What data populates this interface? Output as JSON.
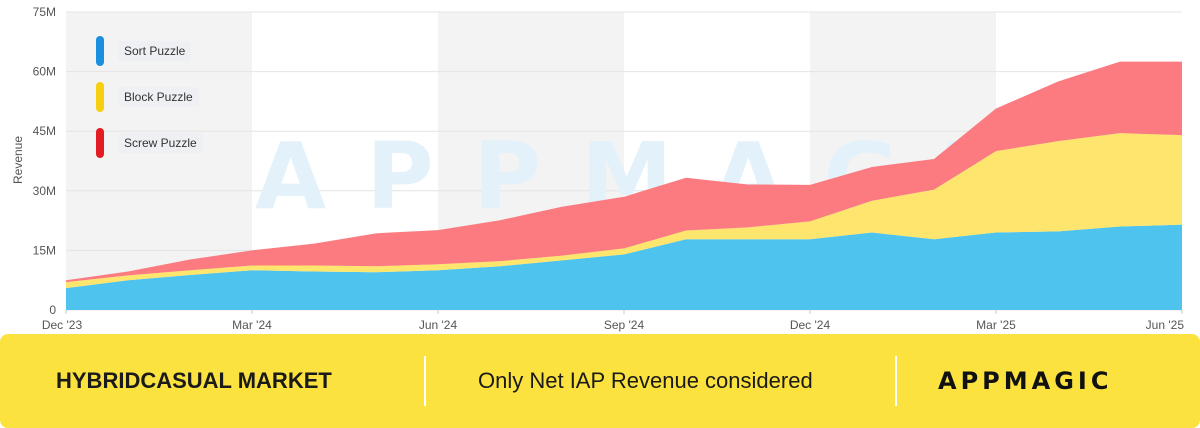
{
  "chart_data": {
    "type": "area",
    "stacked": true,
    "ylabel": "Revenue",
    "ylim": [
      0,
      75000000
    ],
    "yticks": [
      0,
      15000000,
      30000000,
      45000000,
      60000000,
      75000000
    ],
    "ytick_labels": [
      "0",
      "15M",
      "30M",
      "45M",
      "60M",
      "75M"
    ],
    "x": [
      "Dec '23",
      "Jan '24",
      "Feb '24",
      "Mar '24",
      "Apr '24",
      "May '24",
      "Jun '24",
      "Jul '24",
      "Aug '24",
      "Sep '24",
      "Oct '24",
      "Nov '24",
      "Dec '24",
      "Jan '25",
      "Feb '25",
      "Mar '25",
      "Apr '25",
      "May '25",
      "Jun '25"
    ],
    "xtick_labels": [
      "Dec '23",
      "Mar '24",
      "Jun '24",
      "Sep '24",
      "Dec '24",
      "Mar '25",
      "Jun '25"
    ],
    "xtick_indices": [
      0,
      3,
      6,
      9,
      12,
      15,
      18
    ],
    "series": [
      {
        "name": "Sort Puzzle",
        "color": "#4ec3ee",
        "values": [
          5500000,
          7500000,
          8800000,
          10000000,
          9700000,
          9500000,
          10000000,
          11000000,
          12500000,
          14000000,
          17800000,
          17800000,
          17800000,
          19500000,
          17800000,
          19500000,
          19800000,
          21000000,
          21500000
        ]
      },
      {
        "name": "Block Puzzle",
        "color": "#fde56e",
        "values": [
          1500000,
          1200000,
          1200000,
          1200000,
          1500000,
          1500000,
          1500000,
          1300000,
          1200000,
          1500000,
          2200000,
          3000000,
          4500000,
          8000000,
          12500000,
          20500000,
          22700000,
          23500000,
          22500000
        ]
      },
      {
        "name": "Screw Puzzle",
        "color": "#fb7b80",
        "values": [
          500000,
          1000000,
          2700000,
          3800000,
          5500000,
          8300000,
          8600000,
          10300000,
          12300000,
          13000000,
          13300000,
          10800000,
          9200000,
          8500000,
          7700000,
          10700000,
          15000000,
          18000000,
          18500000
        ]
      }
    ]
  },
  "watermark": "APPMAGIC",
  "footer": {
    "market_label": "HYBRIDCASUAL MARKET",
    "note": "Only Net IAP Revenue considered",
    "brand": "APPMAGIC"
  },
  "colors": {
    "footer_bg": "#fbe23e",
    "band_shade": "#f3f3f3"
  }
}
